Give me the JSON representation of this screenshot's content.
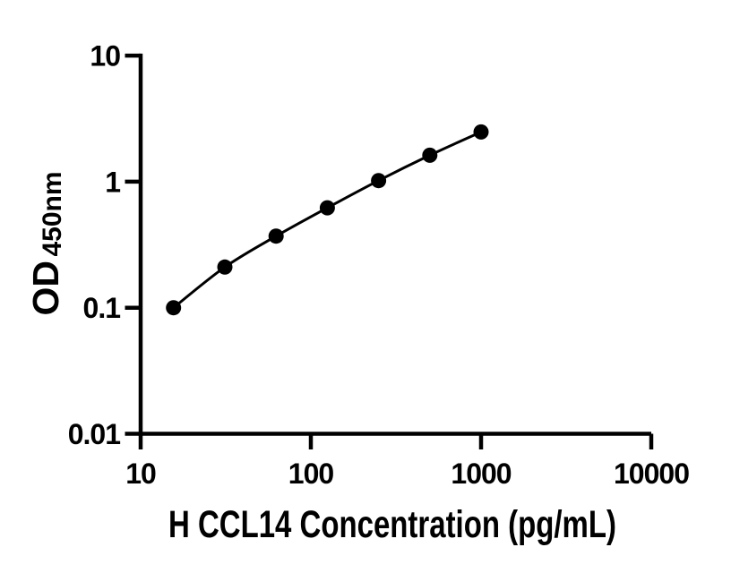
{
  "chart_data": {
    "type": "scatter",
    "subtype": "standard-curve-with-smooth-connecting-line",
    "title": "",
    "xlabel": "H CCL14 Concentration (pg/mL)",
    "ylabel": "OD450nm",
    "ylabel_main": "OD",
    "ylabel_sub": "450nm",
    "x_scale": "log10",
    "y_scale": "log10",
    "xlim": [
      10,
      10000
    ],
    "ylim": [
      0.01,
      10
    ],
    "x_ticks": [
      10,
      100,
      1000,
      10000
    ],
    "x_tick_labels": [
      "10",
      "100",
      "1000",
      "10000"
    ],
    "y_ticks": [
      0.01,
      0.1,
      1,
      10
    ],
    "y_tick_labels": [
      "0.01",
      "0.1",
      "1",
      "10"
    ],
    "series": [
      {
        "x": [
          15.6,
          31.25,
          62.5,
          125,
          250,
          500,
          1000
        ],
        "y": [
          0.1,
          0.21,
          0.37,
          0.62,
          1.02,
          1.62,
          2.48
        ]
      }
    ],
    "grid": false,
    "legend": "none",
    "marker": "filled-circle",
    "marker_color": "#000000",
    "line_color": "#000000",
    "axis_color": "#000000",
    "background_color": "#ffffff"
  }
}
